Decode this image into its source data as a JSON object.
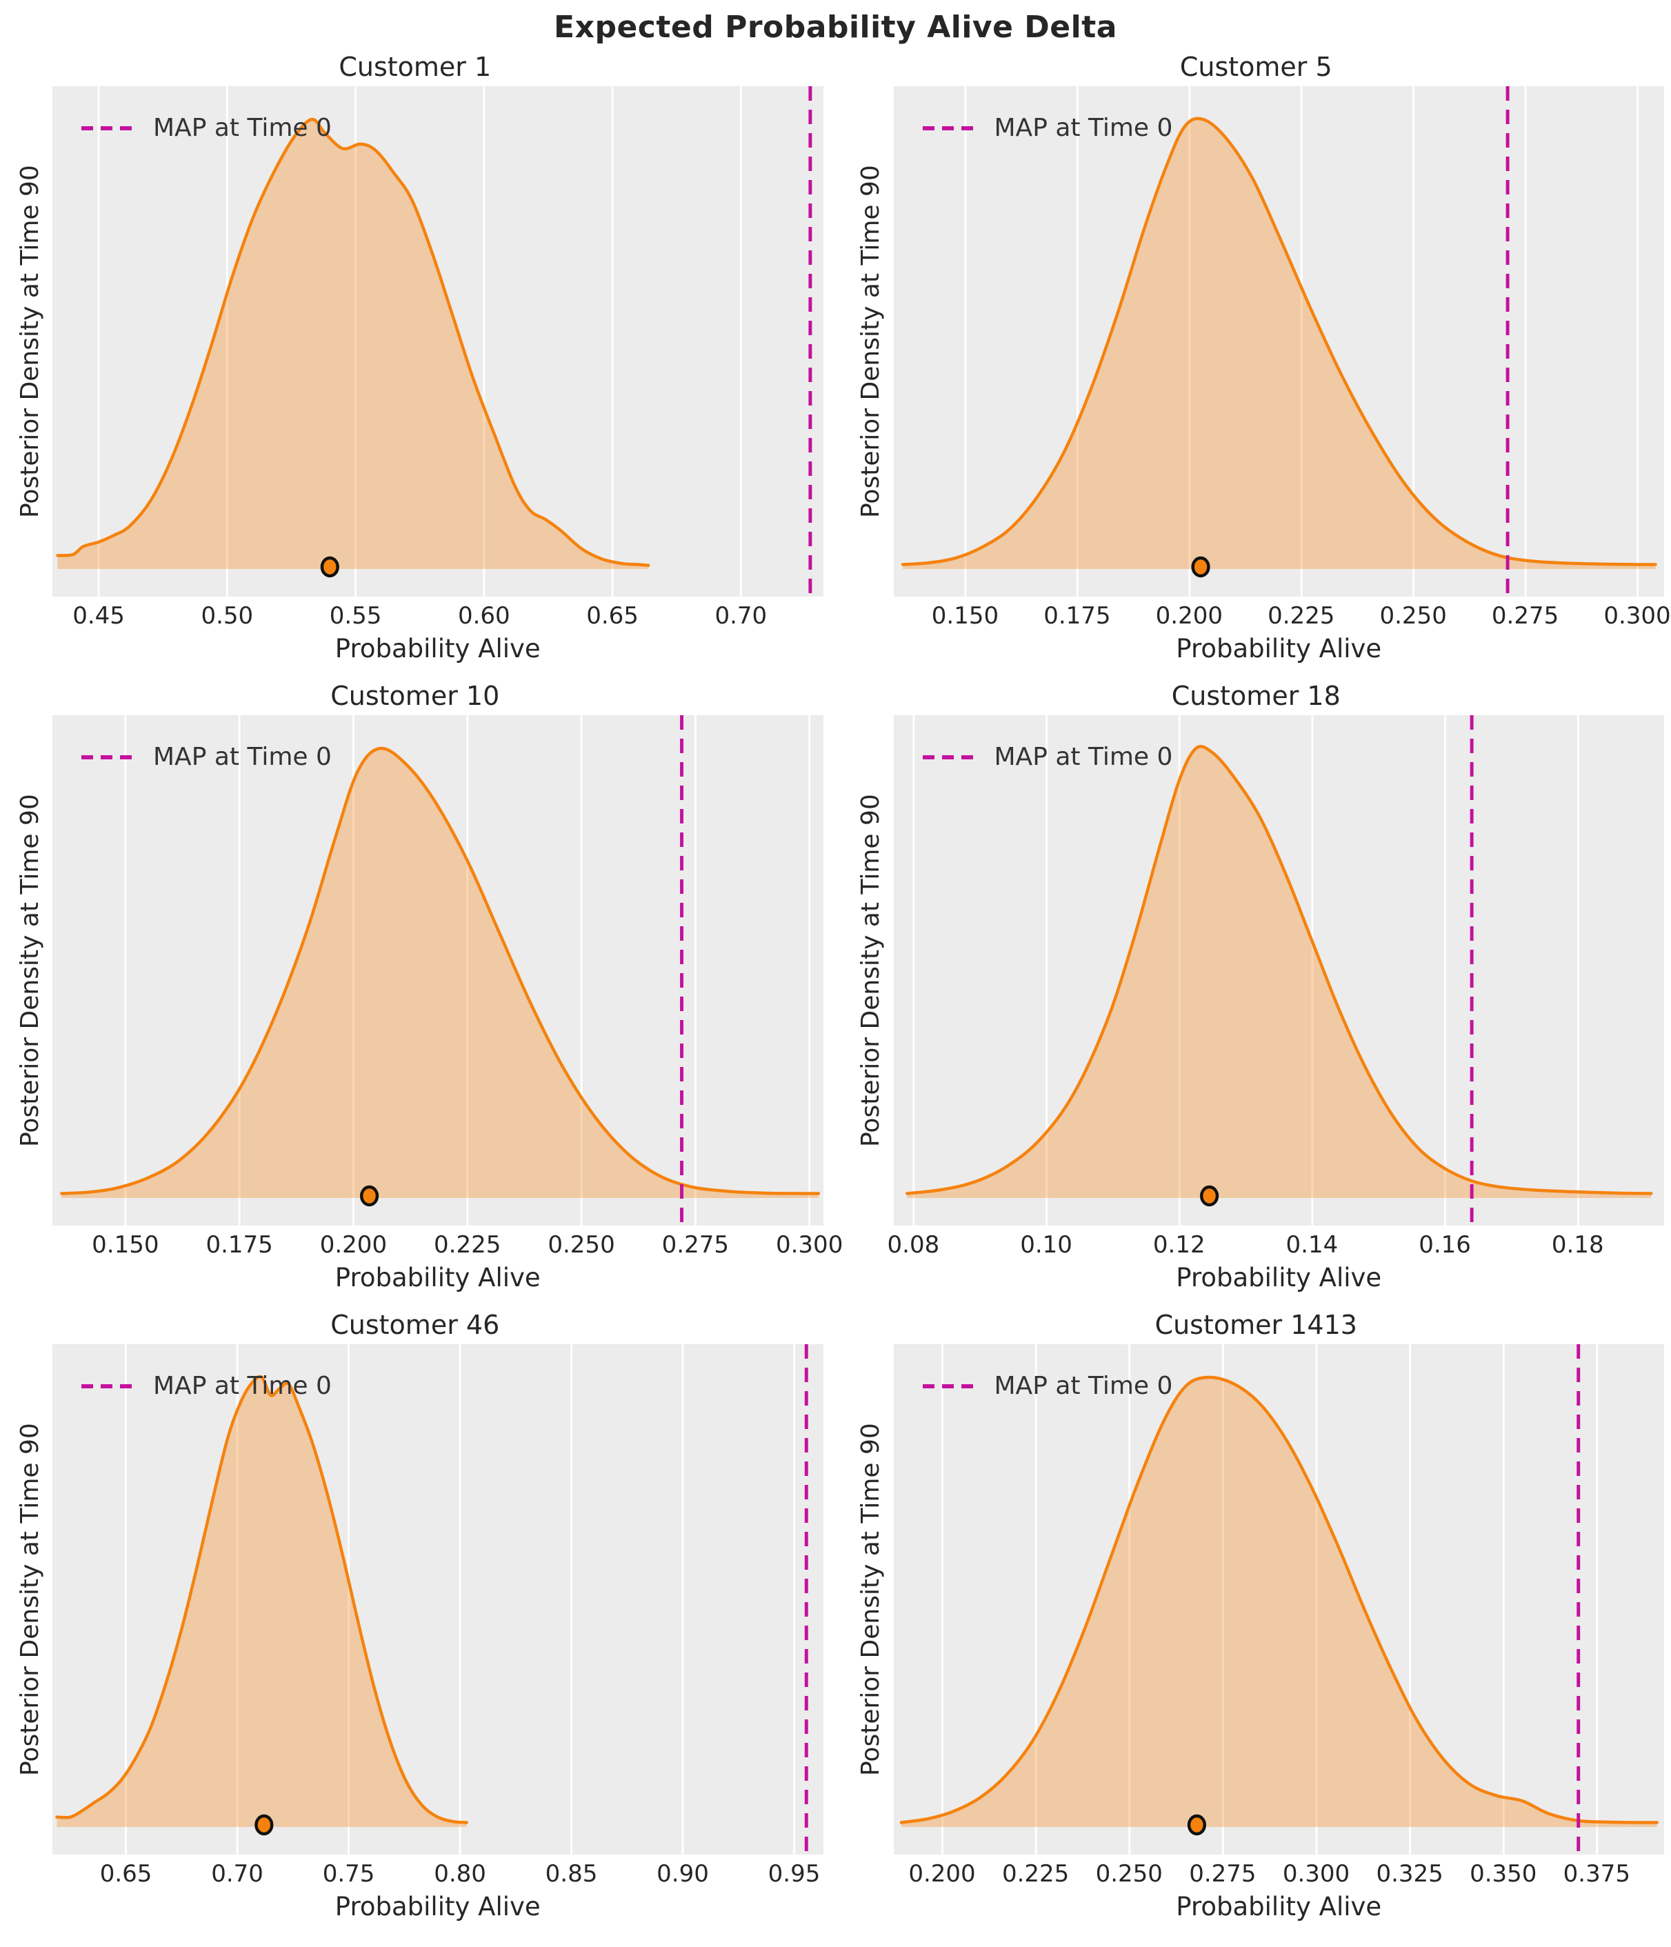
{
  "figure": {
    "title": "Expected Probability Alive Delta"
  },
  "style": {
    "curve_color": "#F5820E",
    "fill_color": "rgba(245,130,14,0.32)",
    "map_line_color": "#C4119E",
    "plot_bg": "#ECECEC",
    "grid_color": "#FFFFFF",
    "text_color": "#262626",
    "dot_edge_color": "#111111",
    "legend_position": "upper left",
    "grid": "vertical gridlines at x ticks, no spines, no y ticks"
  },
  "chart_data": [
    {
      "type": "area",
      "title": "Customer 1",
      "xlabel": "Probability Alive",
      "ylabel": "Posterior Density at Time 90",
      "legend_label": "MAP at Time 0",
      "xlim": [
        0.432,
        0.732
      ],
      "xtick_labels": [
        "0.45",
        "0.50",
        "0.55",
        "0.60",
        "0.65",
        "0.70"
      ],
      "map_at_time0": 0.727,
      "point_estimate": 0.54,
      "kde": {
        "x": [
          0.434,
          0.44,
          0.444,
          0.45,
          0.456,
          0.462,
          0.47,
          0.478,
          0.486,
          0.494,
          0.502,
          0.51,
          0.518,
          0.526,
          0.533,
          0.538,
          0.545,
          0.552,
          0.558,
          0.565,
          0.572,
          0.58,
          0.588,
          0.596,
          0.604,
          0.612,
          0.618,
          0.624,
          0.63,
          0.638,
          0.646,
          0.654,
          0.66,
          0.664
        ],
        "density": [
          0.03,
          0.032,
          0.05,
          0.06,
          0.075,
          0.095,
          0.15,
          0.24,
          0.36,
          0.5,
          0.65,
          0.78,
          0.88,
          0.96,
          1.0,
          0.97,
          0.935,
          0.945,
          0.93,
          0.88,
          0.82,
          0.7,
          0.56,
          0.42,
          0.3,
          0.185,
          0.13,
          0.11,
          0.085,
          0.045,
          0.022,
          0.012,
          0.01,
          0.008
        ]
      }
    },
    {
      "type": "area",
      "title": "Customer 5",
      "xlabel": "Probability Alive",
      "ylabel": "Posterior Density at Time 90",
      "legend_label": "MAP at Time 0",
      "xlim": [
        0.134,
        0.306
      ],
      "xtick_labels": [
        "0.150",
        "0.175",
        "0.200",
        "0.225",
        "0.250",
        "0.275",
        "0.300"
      ],
      "map_at_time0": 0.271,
      "point_estimate": 0.2025,
      "kde": {
        "x": [
          0.136,
          0.142,
          0.148,
          0.154,
          0.16,
          0.166,
          0.172,
          0.178,
          0.184,
          0.19,
          0.195,
          0.199,
          0.203,
          0.208,
          0.214,
          0.22,
          0.227,
          0.234,
          0.241,
          0.248,
          0.255,
          0.262,
          0.269,
          0.276,
          0.284,
          0.292,
          0.3,
          0.304
        ],
        "density": [
          0.01,
          0.014,
          0.025,
          0.05,
          0.09,
          0.16,
          0.26,
          0.4,
          0.57,
          0.76,
          0.9,
          0.985,
          1.0,
          0.96,
          0.87,
          0.74,
          0.58,
          0.43,
          0.3,
          0.19,
          0.11,
          0.06,
          0.03,
          0.018,
          0.013,
          0.011,
          0.01,
          0.01
        ]
      }
    },
    {
      "type": "area",
      "title": "Customer 10",
      "xlabel": "Probability Alive",
      "ylabel": "Posterior Density at Time 90",
      "legend_label": "MAP at Time 0",
      "xlim": [
        0.134,
        0.303
      ],
      "xtick_labels": [
        "0.150",
        "0.175",
        "0.200",
        "0.225",
        "0.250",
        "0.275",
        "0.300"
      ],
      "map_at_time0": 0.272,
      "point_estimate": 0.2035,
      "kde": {
        "x": [
          0.136,
          0.142,
          0.148,
          0.155,
          0.162,
          0.169,
          0.176,
          0.183,
          0.19,
          0.196,
          0.201,
          0.206,
          0.212,
          0.218,
          0.225,
          0.232,
          0.239,
          0.246,
          0.253,
          0.26,
          0.267,
          0.274,
          0.282,
          0.29,
          0.298,
          0.302
        ],
        "density": [
          0.01,
          0.013,
          0.022,
          0.045,
          0.085,
          0.155,
          0.26,
          0.41,
          0.6,
          0.8,
          0.95,
          1.0,
          0.96,
          0.88,
          0.75,
          0.59,
          0.43,
          0.29,
          0.18,
          0.1,
          0.05,
          0.025,
          0.015,
          0.011,
          0.01,
          0.01
        ]
      }
    },
    {
      "type": "area",
      "title": "Customer 18",
      "xlabel": "Probability Alive",
      "ylabel": "Posterior Density at Time 90",
      "legend_label": "MAP at Time 0",
      "xlim": [
        0.077,
        0.193
      ],
      "xtick_labels": [
        "0.08",
        "0.10",
        "0.12",
        "0.14",
        "0.16",
        "0.18"
      ],
      "map_at_time0": 0.164,
      "point_estimate": 0.1245,
      "kde": {
        "x": [
          0.079,
          0.084,
          0.089,
          0.094,
          0.099,
          0.104,
          0.109,
          0.113,
          0.117,
          0.12,
          0.1225,
          0.125,
          0.128,
          0.132,
          0.136,
          0.14,
          0.144,
          0.148,
          0.152,
          0.156,
          0.16,
          0.164,
          0.168,
          0.173,
          0.179,
          0.186,
          0.191
        ],
        "density": [
          0.01,
          0.018,
          0.035,
          0.07,
          0.13,
          0.23,
          0.39,
          0.57,
          0.78,
          0.93,
          1.0,
          0.99,
          0.94,
          0.85,
          0.72,
          0.57,
          0.42,
          0.29,
          0.185,
          0.11,
          0.065,
          0.038,
          0.025,
          0.018,
          0.014,
          0.011,
          0.01
        ]
      }
    },
    {
      "type": "area",
      "title": "Customer 46",
      "xlabel": "Probability Alive",
      "ylabel": "Posterior Density at Time 90",
      "legend_label": "MAP at Time 0",
      "xlim": [
        0.617,
        0.963
      ],
      "xtick_labels": [
        "0.65",
        "0.70",
        "0.75",
        "0.80",
        "0.85",
        "0.90",
        "0.95"
      ],
      "map_at_time0": 0.9555,
      "point_estimate": 0.712,
      "kde": {
        "x": [
          0.619,
          0.625,
          0.63,
          0.636,
          0.642,
          0.648,
          0.654,
          0.661,
          0.668,
          0.675,
          0.682,
          0.689,
          0.696,
          0.702,
          0.707,
          0.711,
          0.715,
          0.719,
          0.723,
          0.728,
          0.734,
          0.741,
          0.748,
          0.755,
          0.762,
          0.769,
          0.776,
          0.783,
          0.79,
          0.797,
          0.803
        ],
        "density": [
          0.022,
          0.022,
          0.035,
          0.055,
          0.075,
          0.105,
          0.15,
          0.22,
          0.32,
          0.44,
          0.58,
          0.73,
          0.87,
          0.95,
          0.99,
          1.0,
          0.96,
          0.975,
          0.985,
          0.93,
          0.85,
          0.73,
          0.59,
          0.44,
          0.3,
          0.185,
          0.1,
          0.048,
          0.022,
          0.012,
          0.01
        ]
      }
    },
    {
      "type": "area",
      "title": "Customer 1413",
      "xlabel": "Probability Alive",
      "ylabel": "Posterior Density at Time 90",
      "legend_label": "MAP at Time 0",
      "xlim": [
        0.187,
        0.393
      ],
      "xtick_labels": [
        "0.200",
        "0.225",
        "0.250",
        "0.275",
        "0.300",
        "0.325",
        "0.350",
        "0.375"
      ],
      "map_at_time0": 0.37,
      "point_estimate": 0.268,
      "kde": {
        "x": [
          0.189,
          0.196,
          0.203,
          0.21,
          0.217,
          0.224,
          0.231,
          0.238,
          0.245,
          0.252,
          0.259,
          0.265,
          0.271,
          0.278,
          0.285,
          0.292,
          0.299,
          0.306,
          0.313,
          0.32,
          0.327,
          0.334,
          0.341,
          0.348,
          0.355,
          0.362,
          0.37,
          0.378,
          0.386,
          0.391
        ],
        "density": [
          0.01,
          0.018,
          0.035,
          0.065,
          0.115,
          0.19,
          0.3,
          0.44,
          0.6,
          0.76,
          0.9,
          0.98,
          1.0,
          0.985,
          0.94,
          0.86,
          0.75,
          0.62,
          0.48,
          0.35,
          0.235,
          0.15,
          0.095,
          0.07,
          0.058,
          0.03,
          0.014,
          0.011,
          0.01,
          0.01
        ]
      }
    }
  ]
}
